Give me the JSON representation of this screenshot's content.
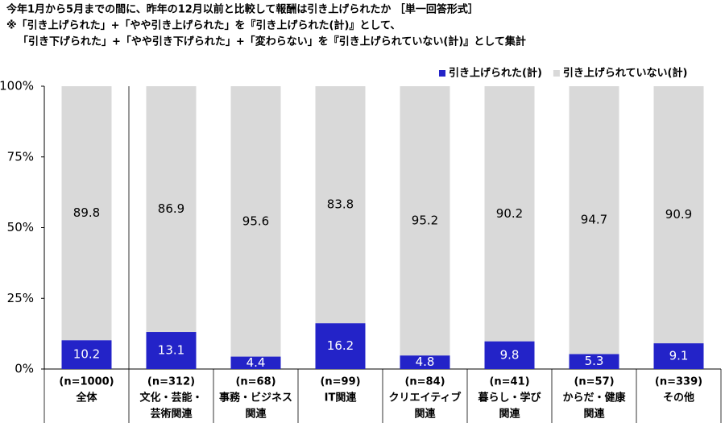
{
  "chart_data": {
    "type": "stacked_bar",
    "title": [
      "今年1月から5月までの間に、昨年の12月以前と比較して報酬は引き上げられたか ［単一回答形式］",
      "※「引き上げられた」+「やや引き上げられた」を『引き上げられた(計)』として、",
      "「引き下げられた」+「やや引き下げられた」+「変わらない」を『引き上げられていない(計)』として集計"
    ],
    "categories": [
      [
        "(n=1000)",
        "全体"
      ],
      [
        "(n=312)",
        "文化・芸能・",
        "芸術関連"
      ],
      [
        "(n=68)",
        "事務・ビジネス",
        "関連"
      ],
      [
        "(n=99)",
        "IT関連"
      ],
      [
        "(n=84)",
        "クリエイティブ",
        "関連"
      ],
      [
        "(n=41)",
        "暮らし・学び",
        "関連"
      ],
      [
        "(n=57)",
        "からだ・健康",
        "関連"
      ],
      [
        "(n=339)",
        "その他"
      ]
    ],
    "series": [
      {
        "name": "引き上げられた(計)",
        "color": "#2323c8",
        "values": [
          10.2,
          13.1,
          4.4,
          16.2,
          4.8,
          9.8,
          5.3,
          9.1
        ]
      },
      {
        "name": "引き上げられていない(計)",
        "color": "#d9d9d9",
        "values": [
          89.8,
          86.9,
          95.6,
          83.8,
          95.2,
          90.2,
          94.7,
          90.9
        ]
      }
    ],
    "ylim": [
      0,
      100
    ],
    "yticks": [
      {
        "value": 0,
        "label": "0%"
      },
      {
        "value": 25,
        "label": "25%"
      },
      {
        "value": 50,
        "label": "50%"
      },
      {
        "value": 75,
        "label": "75%"
      },
      {
        "value": 100,
        "label": "100%"
      }
    ],
    "legend": "top-right"
  }
}
